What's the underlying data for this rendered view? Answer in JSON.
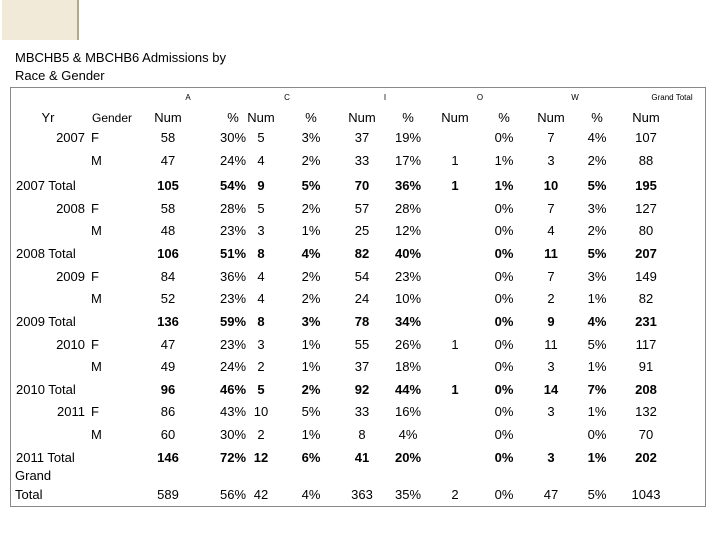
{
  "header": {
    "title_line1": "MBCHB5 & MBCHB6 Admissions by",
    "title_line2": "Race & Gender"
  },
  "table": {
    "groups": [
      "A",
      "C",
      "I",
      "O",
      "W",
      "Grand Total"
    ],
    "columns": [
      "Yr",
      "Gender",
      "Num",
      "%",
      "Num",
      "%",
      "Num",
      "%",
      "Num",
      "%",
      "Num",
      "%",
      "Num"
    ],
    "rows": [
      {
        "year": "2007",
        "gender": "F",
        "cells": [
          "58",
          "30%",
          "5",
          "3%",
          "37",
          "19%",
          null,
          "0%",
          "7",
          "4%",
          "107"
        ]
      },
      {
        "gender": "M",
        "cells": [
          "47",
          "24%",
          "4",
          "2%",
          "33",
          "17%",
          "1",
          "1%",
          "3",
          "2%",
          "88"
        ]
      },
      {
        "label": "2007 Total",
        "cells": [
          "105",
          "54%",
          "9",
          "5%",
          "70",
          "36%",
          "1",
          "1%",
          "10",
          "5%",
          "195"
        ]
      },
      {
        "year": "2008",
        "gender": "F",
        "cells": [
          "58",
          "28%",
          "5",
          "2%",
          "57",
          "28%",
          null,
          "0%",
          "7",
          "3%",
          "127"
        ]
      },
      {
        "gender": "M",
        "cells": [
          "48",
          "23%",
          "3",
          "1%",
          "25",
          "12%",
          null,
          "0%",
          "4",
          "2%",
          "80"
        ]
      },
      {
        "label": "2008 Total",
        "cells": [
          "106",
          "51%",
          "8",
          "4%",
          "82",
          "40%",
          null,
          "0%",
          "11",
          "5%",
          "207"
        ]
      },
      {
        "year": "2009",
        "gender": "F",
        "cells": [
          "84",
          "36%",
          "4",
          "2%",
          "54",
          "23%",
          null,
          "0%",
          "7",
          "3%",
          "149"
        ]
      },
      {
        "gender": "M",
        "cells": [
          "52",
          "23%",
          "4",
          "2%",
          "24",
          "10%",
          null,
          "0%",
          "2",
          "1%",
          "82"
        ]
      },
      {
        "label": "2009 Total",
        "cells": [
          "136",
          "59%",
          "8",
          "3%",
          "78",
          "34%",
          null,
          "0%",
          "9",
          "4%",
          "231"
        ]
      },
      {
        "year": "2010",
        "gender": "F",
        "cells": [
          "47",
          "23%",
          "3",
          "1%",
          "55",
          "26%",
          "1",
          "0%",
          "11",
          "5%",
          "117"
        ]
      },
      {
        "gender": "M",
        "cells": [
          "49",
          "24%",
          "2",
          "1%",
          "37",
          "18%",
          null,
          "0%",
          "3",
          "1%",
          "91"
        ]
      },
      {
        "label": "2010 Total",
        "cells": [
          "96",
          "46%",
          "5",
          "2%",
          "92",
          "44%",
          "1",
          "0%",
          "14",
          "7%",
          "208"
        ]
      },
      {
        "year": "2011",
        "gender": "F",
        "cells": [
          "86",
          "43%",
          "10",
          "5%",
          "33",
          "16%",
          null,
          "0%",
          "3",
          "1%",
          "132"
        ]
      },
      {
        "gender": "M",
        "cells": [
          "60",
          "30%",
          "2",
          "1%",
          "8",
          "4%",
          null,
          "0%",
          null,
          "0%",
          "70"
        ]
      },
      {
        "label": "2011 Total",
        "cells": [
          "146",
          "72%",
          "12",
          "6%",
          "41",
          "20%",
          null,
          "0%",
          "3",
          "1%",
          "202"
        ]
      },
      {
        "label": "Grand Total",
        "cells": [
          "589",
          "56%",
          "42",
          "4%",
          "363",
          "35%",
          "2",
          "0%",
          "47",
          "5%",
          "1043"
        ]
      }
    ]
  }
}
